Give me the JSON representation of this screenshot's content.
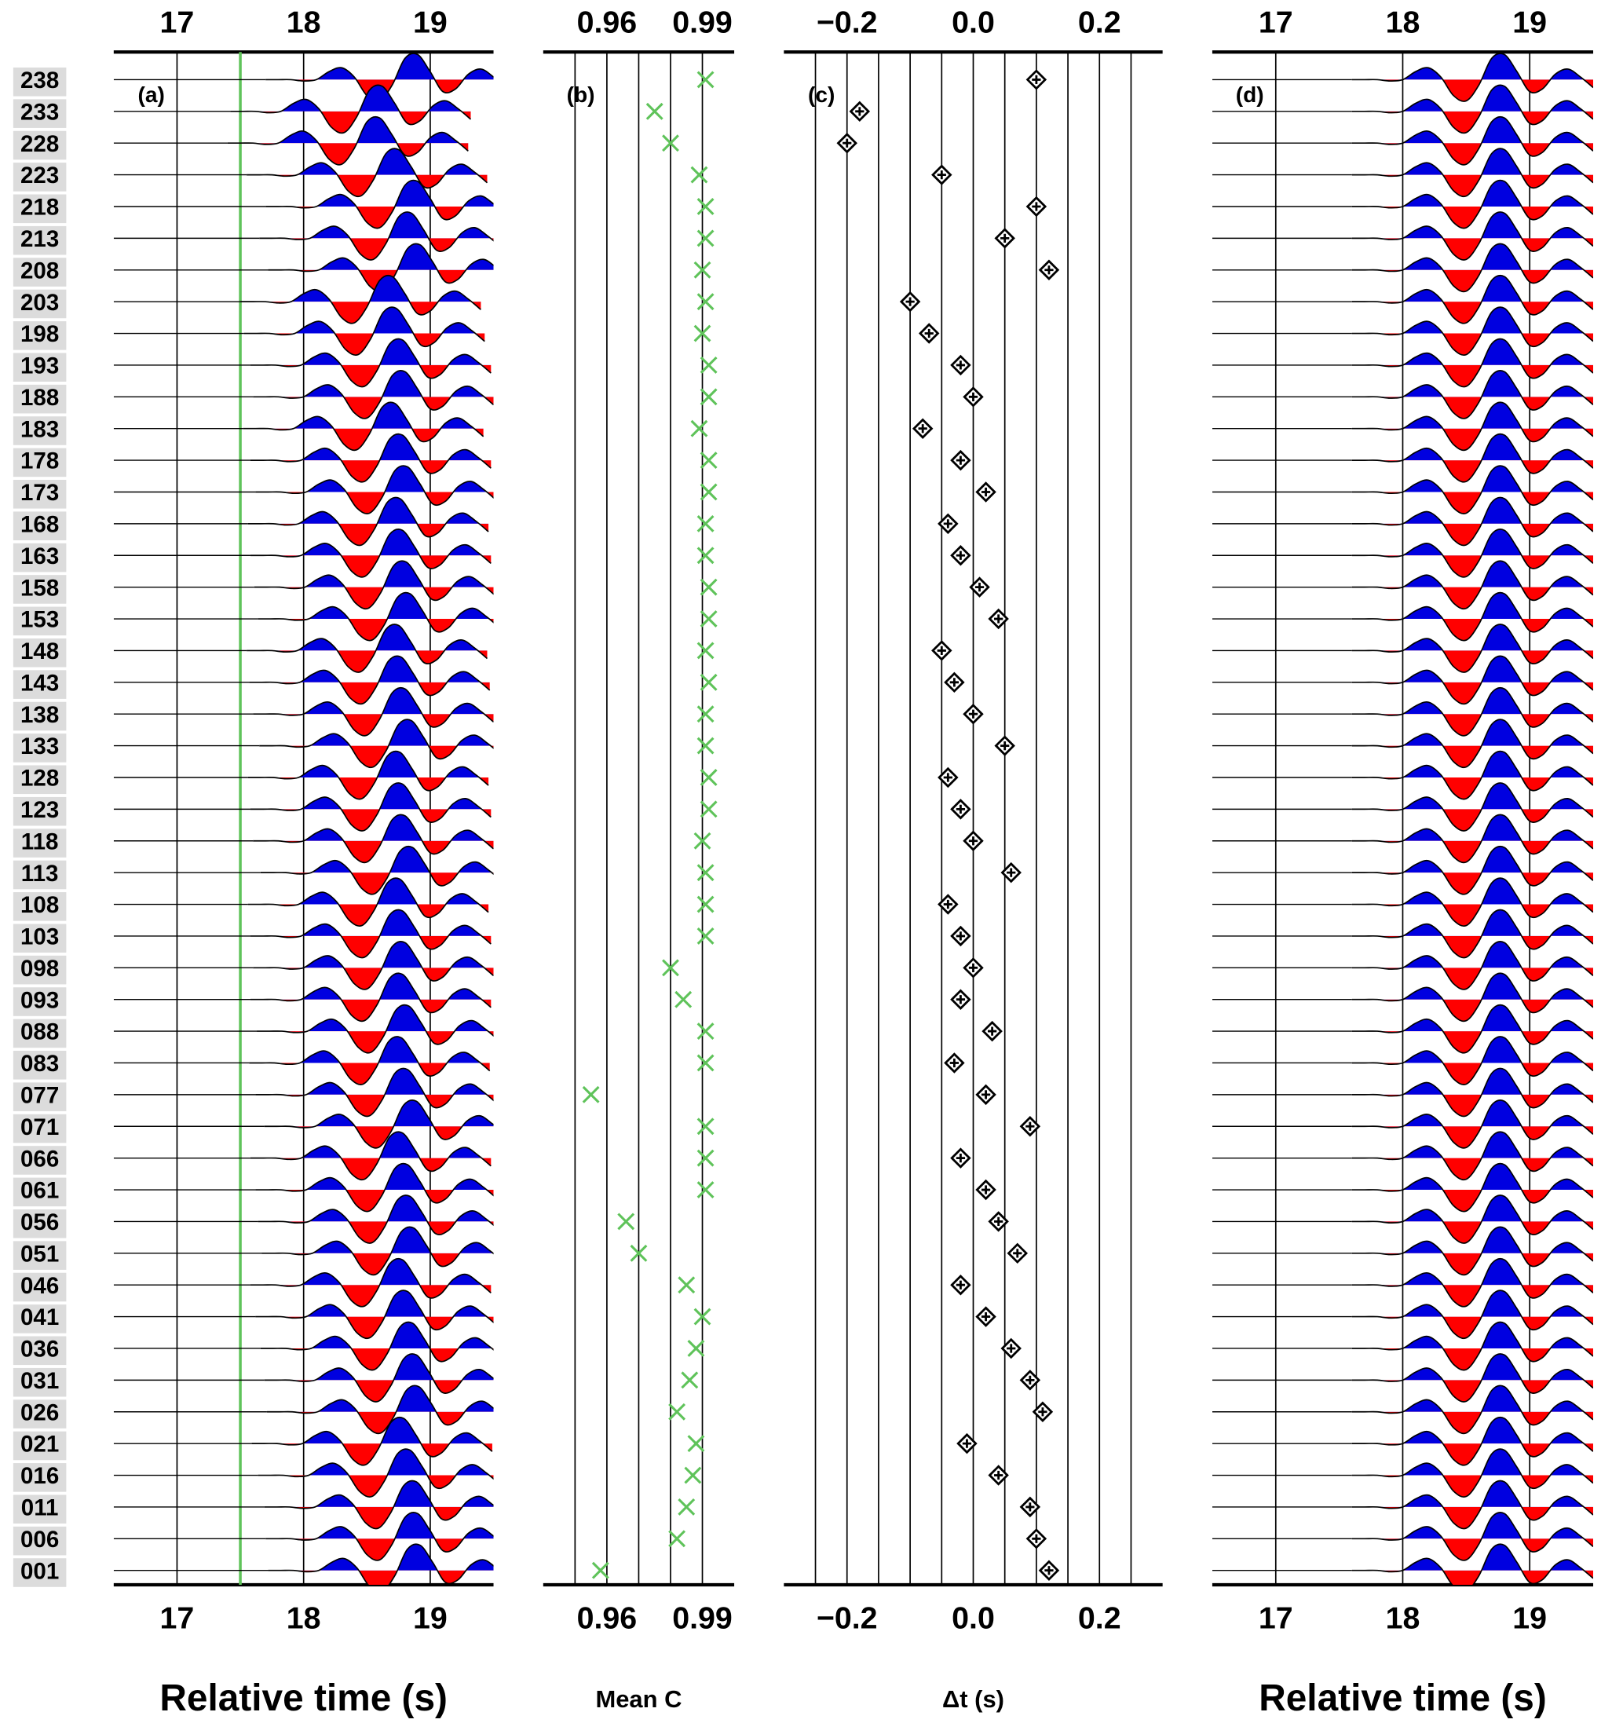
{
  "chart_data": [
    {
      "type": "wiggle",
      "panel_label": "(a)",
      "xlabel": "Relative time (s)",
      "categories": [
        "238",
        "233",
        "228",
        "223",
        "218",
        "213",
        "208",
        "203",
        "198",
        "193",
        "188",
        "183",
        "178",
        "173",
        "168",
        "163",
        "158",
        "153",
        "148",
        "143",
        "138",
        "133",
        "128",
        "123",
        "118",
        "113",
        "108",
        "103",
        "098",
        "093",
        "088",
        "083",
        "077",
        "071",
        "066",
        "061",
        "056",
        "051",
        "046",
        "041",
        "036",
        "031",
        "026",
        "021",
        "016",
        "011",
        "006",
        "001"
      ],
      "xlim": [
        16.5,
        19.5
      ],
      "xticks": [
        17,
        18,
        19
      ],
      "reference_line": 17.5,
      "reference_color": "#5fc35a",
      "positive_color": "#0000e0",
      "negative_color": "#ff0000"
    },
    {
      "type": "scatter",
      "panel_label": "(b)",
      "xlabel": "Mean C",
      "xlim": [
        0.94,
        1.0
      ],
      "xticks": [
        0.96,
        0.99
      ],
      "grid_lines": [
        0.95,
        0.96,
        0.97,
        0.98,
        0.99
      ],
      "marker": "x",
      "color": "#5fc35a",
      "values": [
        0.991,
        0.975,
        0.98,
        0.989,
        0.991,
        0.991,
        0.99,
        0.991,
        0.99,
        0.992,
        0.992,
        0.989,
        0.992,
        0.992,
        0.991,
        0.991,
        0.992,
        0.992,
        0.991,
        0.992,
        0.991,
        0.991,
        0.992,
        0.992,
        0.99,
        0.991,
        0.991,
        0.991,
        0.98,
        0.984,
        0.991,
        0.991,
        0.955,
        0.991,
        0.991,
        0.991,
        0.966,
        0.97,
        0.985,
        0.99,
        0.988,
        0.986,
        0.982,
        0.988,
        0.987,
        0.985,
        0.982,
        0.958
      ]
    },
    {
      "type": "scatter",
      "panel_label": "(c)",
      "xlabel": "Δt (s)",
      "xlim": [
        -0.3,
        0.3
      ],
      "xticks": [
        {
          "value": -0.2,
          "label": "−0.2"
        },
        {
          "value": 0,
          "label": "0.0"
        },
        {
          "value": 0.2,
          "label": "0.2"
        }
      ],
      "grid_lines": [
        -0.25,
        -0.2,
        -0.15,
        -0.1,
        -0.05,
        0,
        0.05,
        0.1,
        0.15,
        0.2,
        0.25
      ],
      "marker": "diamond",
      "color": "#000000",
      "values": [
        0.1,
        -0.18,
        -0.2,
        -0.05,
        0.1,
        0.05,
        0.12,
        -0.1,
        -0.07,
        -0.02,
        0.0,
        -0.08,
        -0.02,
        0.02,
        -0.04,
        -0.02,
        0.01,
        0.04,
        -0.05,
        -0.03,
        0.0,
        0.05,
        -0.04,
        -0.02,
        0.0,
        0.06,
        -0.04,
        -0.02,
        0.0,
        -0.02,
        0.03,
        -0.03,
        0.02,
        0.09,
        -0.02,
        0.02,
        0.04,
        0.07,
        -0.02,
        0.02,
        0.06,
        0.09,
        0.11,
        -0.01,
        0.04,
        0.09,
        0.1,
        0.12
      ]
    },
    {
      "type": "wiggle",
      "panel_label": "(d)",
      "xlabel": "Relative time (s)",
      "xlim": [
        16.5,
        19.5
      ],
      "xticks": [
        17,
        18,
        19
      ],
      "positive_color": "#0000e0",
      "negative_color": "#ff0000",
      "waveform": {
        "x": [
          17.6,
          17.7,
          17.8,
          17.9,
          18.0,
          18.1,
          18.2,
          18.3,
          18.4,
          18.5,
          18.6,
          18.7,
          18.8,
          18.9,
          19.0,
          19.1,
          19.2,
          19.3,
          19.4,
          19.5
        ],
        "values": [
          0,
          0,
          0,
          -0.05,
          0,
          0.3,
          0.45,
          0.1,
          -0.6,
          -0.8,
          -0.2,
          0.8,
          0.95,
          0.3,
          -0.45,
          -0.35,
          0.2,
          0.4,
          0.1,
          -0.3
        ]
      }
    }
  ]
}
